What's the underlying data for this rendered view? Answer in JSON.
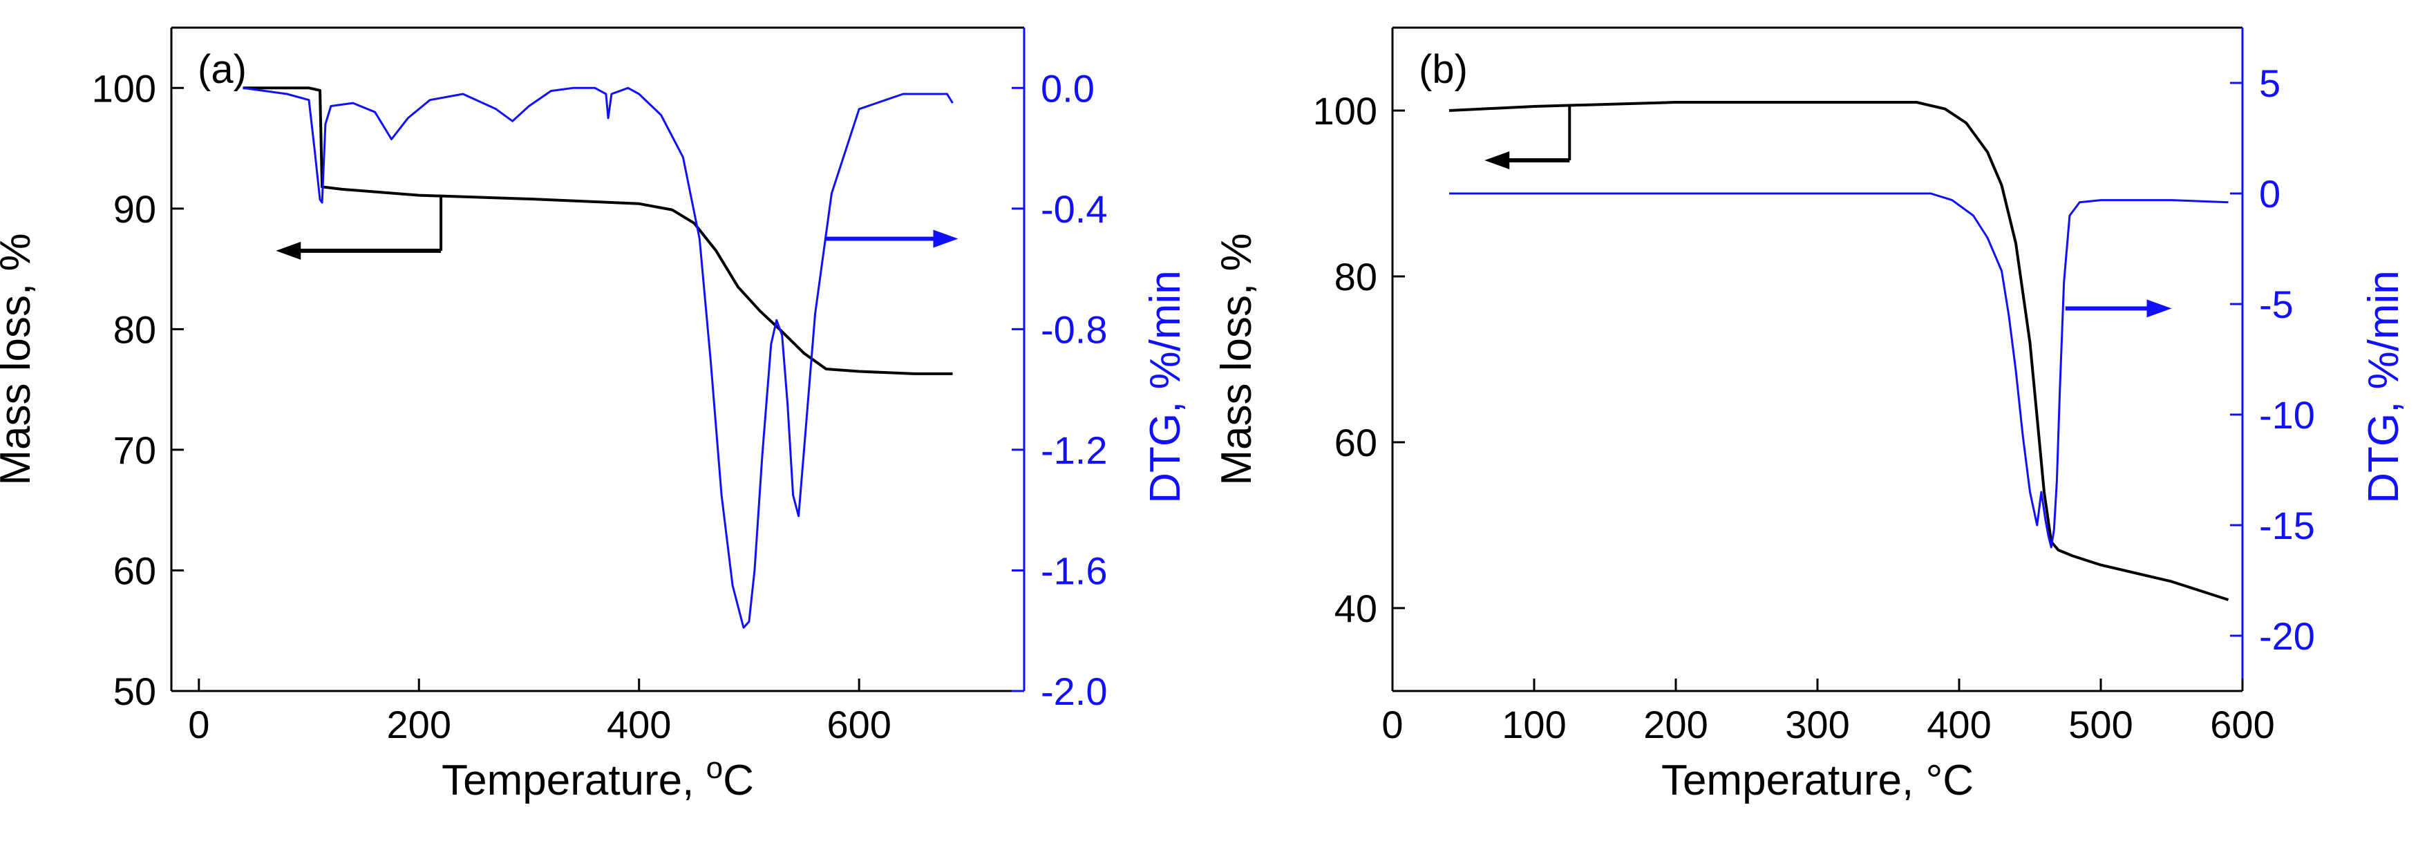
{
  "colors": {
    "mass": "#000000",
    "dtg": "#1010ff"
  },
  "chart_data": [
    {
      "type": "line",
      "panel_label": "(a)",
      "xlabel": "Temperature, ",
      "xlabel_sup": "o",
      "xlabel_unit": "C",
      "ylabel": "Mass loss, %",
      "y2label": "DTG, %/min",
      "xlim": [
        -25,
        750
      ],
      "ylim": [
        50,
        105
      ],
      "y2lim": [
        -2.0,
        0.2
      ],
      "x_ticks": [
        "0",
        "200",
        "400",
        "600"
      ],
      "x_tick_values": [
        0,
        200,
        400,
        600
      ],
      "y_ticks": [
        "50",
        "60",
        "70",
        "80",
        "90",
        "100"
      ],
      "y_tick_values": [
        50,
        60,
        70,
        80,
        90,
        100
      ],
      "y2_ticks": [
        "-2.0",
        "-1.6",
        "-1.2",
        "-0.8",
        "-0.4",
        "0.0"
      ],
      "y2_tick_values": [
        -2.0,
        -1.6,
        -1.2,
        -0.8,
        -0.4,
        0.0
      ],
      "series": [
        {
          "axis": "left",
          "color": "#000000",
          "x": [
            40,
            100,
            110,
            112,
            130,
            200,
            300,
            400,
            430,
            450,
            470,
            490,
            510,
            530,
            550,
            570,
            600,
            650,
            685
          ],
          "y": [
            100,
            100,
            99.8,
            91.8,
            91.6,
            91.1,
            90.8,
            90.4,
            89.9,
            88.8,
            86.5,
            83.5,
            81.5,
            79.8,
            78,
            76.7,
            76.5,
            76.3,
            76.3
          ]
        },
        {
          "axis": "right",
          "color": "#1010ff",
          "x": [
            40,
            60,
            80,
            100,
            105,
            110,
            112,
            115,
            120,
            140,
            160,
            175,
            190,
            210,
            240,
            270,
            285,
            300,
            320,
            340,
            360,
            370,
            372,
            375,
            390,
            400,
            420,
            440,
            455,
            465,
            475,
            485,
            495,
            500,
            505,
            512,
            520,
            525,
            530,
            535,
            540,
            545,
            550,
            560,
            575,
            600,
            640,
            680,
            685
          ],
          "y": [
            0.0,
            -0.01,
            -0.02,
            -0.04,
            -0.2,
            -0.37,
            -0.38,
            -0.12,
            -0.06,
            -0.05,
            -0.08,
            -0.17,
            -0.1,
            -0.04,
            -0.02,
            -0.07,
            -0.11,
            -0.06,
            -0.01,
            0.0,
            0.0,
            -0.02,
            -0.1,
            -0.02,
            0.0,
            -0.02,
            -0.09,
            -0.23,
            -0.5,
            -0.9,
            -1.35,
            -1.65,
            -1.79,
            -1.77,
            -1.6,
            -1.22,
            -0.85,
            -0.77,
            -0.82,
            -1.05,
            -1.35,
            -1.42,
            -1.2,
            -0.75,
            -0.35,
            -0.07,
            -0.02,
            -0.02,
            -0.05
          ]
        }
      ],
      "annotations": [
        {
          "text": "arrow-left",
          "x_data": [
            220,
            70
          ],
          "y_data": 86.5,
          "axis": "left"
        },
        {
          "text": "arrow-right",
          "x_data": [
            570,
            690
          ],
          "y_data": -0.5,
          "axis": "right"
        }
      ]
    },
    {
      "type": "line",
      "panel_label": "(b)",
      "xlabel": "Temperature, °C",
      "ylabel": "Mass loss, %",
      "y2label": "DTG, %/min",
      "xlim": [
        0,
        600
      ],
      "ylim": [
        30,
        110
      ],
      "y2lim": [
        -22.5,
        7.5
      ],
      "x_ticks": [
        "0",
        "100",
        "200",
        "300",
        "400",
        "500",
        "600"
      ],
      "x_tick_values": [
        0,
        100,
        200,
        300,
        400,
        500,
        600
      ],
      "y_ticks": [
        "40",
        "60",
        "80",
        "100"
      ],
      "y_tick_values": [
        40,
        60,
        80,
        100
      ],
      "y2_ticks": [
        "-20",
        "-15",
        "-10",
        "-5",
        "0",
        "5"
      ],
      "y2_tick_values": [
        -20,
        -15,
        -10,
        -5,
        0,
        5
      ],
      "series": [
        {
          "axis": "left",
          "color": "#000000",
          "x": [
            40,
            100,
            200,
            300,
            370,
            390,
            405,
            420,
            430,
            440,
            450,
            455,
            460,
            465,
            470,
            480,
            500,
            550,
            590
          ],
          "y": [
            100,
            100.5,
            101,
            101,
            101,
            100.2,
            98.5,
            95,
            91,
            84,
            72,
            63,
            54,
            48,
            47,
            46.3,
            45.2,
            43.2,
            41
          ]
        },
        {
          "axis": "right",
          "color": "#1010ff",
          "x": [
            40,
            100,
            200,
            300,
            380,
            395,
            410,
            420,
            430,
            435,
            440,
            445,
            450,
            455,
            458,
            461,
            463,
            465,
            467,
            469,
            471,
            474,
            478,
            485,
            500,
            550,
            590
          ],
          "y": [
            0,
            0,
            0,
            0,
            0,
            -0.3,
            -1,
            -2,
            -3.5,
            -5.5,
            -8,
            -11,
            -13.5,
            -15,
            -13.5,
            -14.8,
            -15.5,
            -16,
            -15.2,
            -13,
            -9,
            -4,
            -1,
            -0.4,
            -0.3,
            -0.3,
            -0.4
          ]
        }
      ],
      "annotations": [
        {
          "text": "arrow-left",
          "x_data": [
            125,
            65
          ],
          "y_data": 94,
          "axis": "left"
        },
        {
          "text": "arrow-right",
          "x_data": [
            475,
            550
          ],
          "y_data": -5.2,
          "axis": "right"
        }
      ]
    }
  ]
}
